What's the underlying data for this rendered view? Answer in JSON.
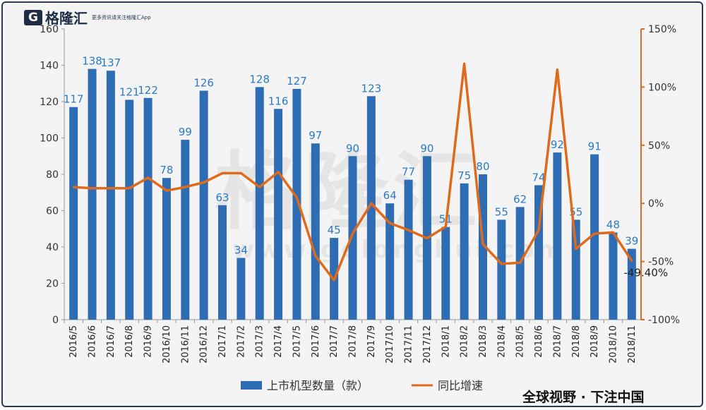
{
  "logo": {
    "mark": "G",
    "name": "格隆汇",
    "tagline": "更多资讯请关注格隆汇App"
  },
  "watermark": {
    "cn": "格隆汇",
    "url": "www.gelonghui.com"
  },
  "footer": "全球视野 · 下注中国",
  "colors": {
    "bar": "#2e6db4",
    "line": "#e06a1b",
    "right_axis": "#e06a1b",
    "label": "#2a7bc4"
  },
  "chart_data": {
    "type": "bar",
    "categories": [
      "2016/5",
      "2016/6",
      "2016/7",
      "2016/8",
      "2016/9",
      "2016/10",
      "2016/11",
      "2016/12",
      "2017/1",
      "2017/2",
      "2017/3",
      "2017/4",
      "2017/5",
      "2017/6",
      "2017/7",
      "2017/8",
      "2017/9",
      "2017/10",
      "2017/11",
      "2017/12",
      "2018/1",
      "2018/2",
      "2018/3",
      "2018/4",
      "2018/5",
      "2018/6",
      "2018/7",
      "2018/8",
      "2018/9",
      "2018/10",
      "2018/11"
    ],
    "series": [
      {
        "name": "上市机型数量（款）",
        "type": "bar",
        "axis": "left",
        "values": [
          117,
          138,
          137,
          121,
          122,
          78,
          99,
          126,
          63,
          34,
          128,
          116,
          127,
          97,
          45,
          90,
          123,
          64,
          77,
          90,
          51,
          75,
          80,
          55,
          62,
          74,
          92,
          55,
          91,
          48,
          39
        ],
        "labels": [
          "117",
          "138",
          "137",
          "121",
          "122",
          "78",
          "99",
          "126",
          "63",
          "34",
          "128",
          "116",
          "127",
          "97",
          "45",
          "90",
          "123",
          "64",
          "77",
          "90",
          "51",
          "75",
          "80",
          "55",
          "62",
          "74",
          "92",
          "55",
          "91",
          "48",
          "39"
        ]
      },
      {
        "name": "同比增速",
        "type": "line",
        "axis": "right",
        "values": [
          14,
          13,
          13,
          13,
          22,
          11,
          14,
          18,
          26,
          26,
          14,
          27,
          5,
          -45,
          -66,
          -26,
          0,
          -17,
          -23,
          -30,
          -20,
          120,
          -35,
          -52,
          -51,
          -23,
          115,
          -39,
          -26,
          -25,
          -49.4
        ],
        "annotation": "-49.40%"
      }
    ],
    "y_left": {
      "lim": [
        0,
        160
      ],
      "ticks": [
        "0",
        "20",
        "40",
        "60",
        "80",
        "100",
        "120",
        "140",
        "160"
      ]
    },
    "y_right": {
      "lim": [
        -100,
        150
      ],
      "ticks": [
        "-100%",
        "-50%",
        "0%",
        "50%",
        "100%",
        "150%"
      ]
    },
    "grid": false,
    "legend_position": "bottom"
  }
}
